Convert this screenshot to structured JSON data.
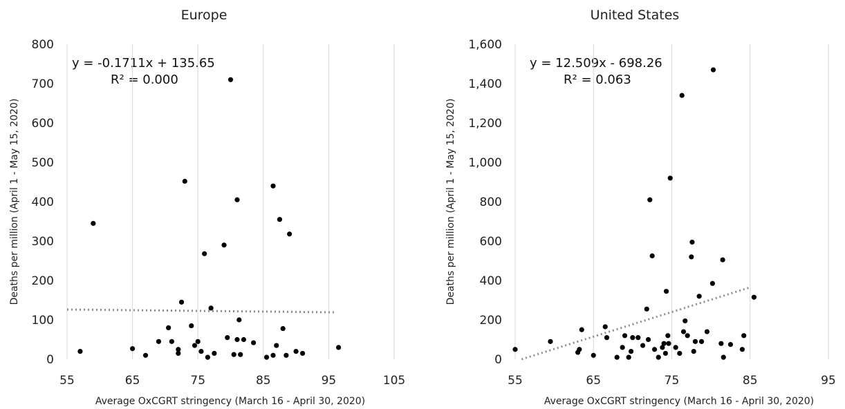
{
  "chart_data": [
    {
      "type": "scatter",
      "title": "Europe",
      "xlabel": "Average OxCGRT stringency (March 16 - April 30, 2020)",
      "ylabel": "Deaths per million (April 1 - May 15, 2020)",
      "xlim": [
        55,
        105
      ],
      "ylim": [
        0,
        800
      ],
      "xticks": [
        "55",
        "65",
        "75",
        "85",
        "95",
        "105"
      ],
      "yticks": [
        "0",
        "100",
        "200",
        "300",
        "400",
        "500",
        "600",
        "700",
        "800"
      ],
      "grid": "vertical",
      "equation": "y = -0.1711x + 135.65",
      "r2": "R² = 0.000",
      "trendline": {
        "slope": -0.1711,
        "intercept": 135.65,
        "x_range": [
          55,
          96
        ]
      },
      "points": [
        [
          57,
          20
        ],
        [
          59,
          345
        ],
        [
          65,
          27
        ],
        [
          67,
          10
        ],
        [
          69,
          45
        ],
        [
          70.5,
          80
        ],
        [
          71,
          45
        ],
        [
          72,
          15
        ],
        [
          72,
          25
        ],
        [
          72.5,
          145
        ],
        [
          73,
          452
        ],
        [
          74,
          85
        ],
        [
          74.5,
          35
        ],
        [
          75,
          45
        ],
        [
          75.5,
          20
        ],
        [
          76,
          268
        ],
        [
          76.5,
          5
        ],
        [
          77,
          130
        ],
        [
          77.5,
          15
        ],
        [
          79,
          290
        ],
        [
          79.5,
          55
        ],
        [
          80,
          710
        ],
        [
          80.5,
          12
        ],
        [
          81,
          50
        ],
        [
          81,
          405
        ],
        [
          81.3,
          100
        ],
        [
          81.5,
          12
        ],
        [
          82,
          50
        ],
        [
          83.5,
          42
        ],
        [
          85.5,
          5
        ],
        [
          86.5,
          440
        ],
        [
          86.5,
          10
        ],
        [
          87,
          35
        ],
        [
          87.5,
          355
        ],
        [
          88,
          78
        ],
        [
          88.5,
          10
        ],
        [
          89,
          318
        ],
        [
          90,
          20
        ],
        [
          91,
          15
        ],
        [
          96.5,
          30
        ]
      ]
    },
    {
      "type": "scatter",
      "title": "United States",
      "xlabel": "Average OxCGRT stringency (March 16 - April 30, 2020)",
      "ylabel": "Deaths per million (April 1 - May 15, 2020)",
      "xlim": [
        55,
        95
      ],
      "ylim": [
        0,
        1600
      ],
      "xticks": [
        "55",
        "65",
        "75",
        "85",
        "95"
      ],
      "yticks": [
        "0",
        "200",
        "400",
        "600",
        "800",
        "1,000",
        "1,200",
        "1,400",
        "1,600"
      ],
      "grid": "vertical",
      "equation": "y = 12.509x - 698.26",
      "r2": "R² = 0.063",
      "trendline": {
        "slope": 12.509,
        "intercept": -698.26,
        "x_range": [
          55.82,
          85
        ]
      },
      "points": [
        [
          55,
          50
        ],
        [
          59.5,
          90
        ],
        [
          63,
          35
        ],
        [
          63.2,
          50
        ],
        [
          63.5,
          150
        ],
        [
          65,
          20
        ],
        [
          66.5,
          165
        ],
        [
          66.7,
          110
        ],
        [
          68,
          10
        ],
        [
          68.7,
          60
        ],
        [
          69,
          120
        ],
        [
          69.5,
          10
        ],
        [
          69.8,
          40
        ],
        [
          70,
          110
        ],
        [
          70.7,
          110
        ],
        [
          71.3,
          70
        ],
        [
          71.8,
          255
        ],
        [
          72,
          100
        ],
        [
          72.2,
          810
        ],
        [
          72.5,
          525
        ],
        [
          72.8,
          50
        ],
        [
          73.3,
          10
        ],
        [
          73.8,
          60
        ],
        [
          74,
          80
        ],
        [
          74.2,
          30
        ],
        [
          74.3,
          345
        ],
        [
          74.5,
          120
        ],
        [
          74.6,
          80
        ],
        [
          74.8,
          920
        ],
        [
          75.5,
          60
        ],
        [
          76,
          30
        ],
        [
          76.3,
          1340
        ],
        [
          76.5,
          140
        ],
        [
          76.7,
          195
        ],
        [
          77,
          120
        ],
        [
          77.5,
          520
        ],
        [
          77.6,
          595
        ],
        [
          77.8,
          40
        ],
        [
          78,
          90
        ],
        [
          78.5,
          320
        ],
        [
          78.8,
          90
        ],
        [
          79.5,
          140
        ],
        [
          80.2,
          385
        ],
        [
          80.3,
          1470
        ],
        [
          81.3,
          80
        ],
        [
          81.5,
          505
        ],
        [
          81.6,
          10
        ],
        [
          82.5,
          75
        ],
        [
          84,
          50
        ],
        [
          84.2,
          120
        ],
        [
          85.5,
          315
        ]
      ]
    }
  ]
}
